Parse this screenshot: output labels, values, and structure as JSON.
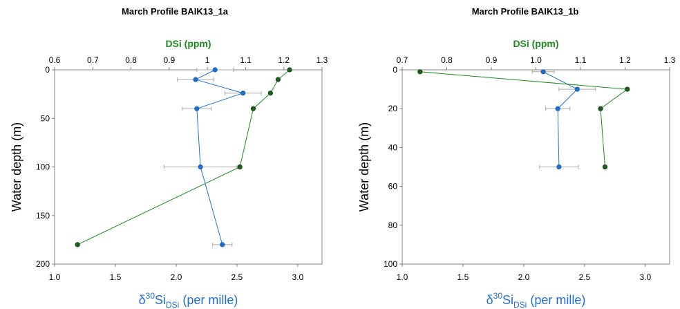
{
  "chart_data": [
    {
      "type": "scatter",
      "title": "March Profile BAIK13_1a",
      "top_axis_label": "DSi (ppm)",
      "ylabel": "Water depth (m)",
      "xlabel_parts": [
        "δ",
        "30",
        "Si",
        "DSi",
        " (per mille)"
      ],
      "x_bottom_lim": [
        1.0,
        3.2
      ],
      "x_bottom_ticks": [
        "1.0",
        "1.5",
        "2.0",
        "2.5",
        "3.0"
      ],
      "x_top_lim": [
        0.6,
        1.3
      ],
      "x_top_ticks": [
        "0.6",
        "0.7",
        "0.8",
        "0.9",
        "1",
        "1.1",
        "1.2",
        "1.3"
      ],
      "ylim": [
        0,
        200
      ],
      "y_ticks": [
        "0",
        "50",
        "100",
        "150",
        "200"
      ],
      "y_inverted": true,
      "grid": false,
      "series": [
        {
          "axis": "bottom",
          "color": "#1f6fd0",
          "points": [
            {
              "depth": 0,
              "value": 2.32,
              "err": 0.15
            },
            {
              "depth": 10,
              "value": 2.16,
              "err": 0.15
            },
            {
              "depth": 24,
              "value": 2.55,
              "err": 0.15
            },
            {
              "depth": 40,
              "value": 2.17,
              "err": 0.12
            },
            {
              "depth": 100,
              "value": 2.2,
              "err": 0.3
            },
            {
              "depth": 180,
              "value": 2.38,
              "err": 0.08
            }
          ]
        },
        {
          "axis": "top",
          "color": "#1f8a1f",
          "points": [
            {
              "depth": 0,
              "value": 1.215
            },
            {
              "depth": 10,
              "value": 1.185
            },
            {
              "depth": 24,
              "value": 1.165
            },
            {
              "depth": 40,
              "value": 1.12
            },
            {
              "depth": 100,
              "value": 1.085
            },
            {
              "depth": 180,
              "value": 0.66
            }
          ]
        }
      ]
    },
    {
      "type": "scatter",
      "title": "March Profile BAIK13_1b",
      "top_axis_label": "DSi (ppm)",
      "ylabel": "Water depth (m)",
      "xlabel_parts": [
        "δ",
        "30",
        "Si",
        "DSi",
        " (per mille)"
      ],
      "x_bottom_lim": [
        1.0,
        3.2
      ],
      "x_bottom_ticks": [
        "1.0",
        "1.5",
        "2.0",
        "2.5",
        "3.0"
      ],
      "x_top_lim": [
        0.7,
        1.3
      ],
      "x_top_ticks": [
        "0.7",
        "0.8",
        "0.9",
        "1.0",
        "1.1",
        "1.2",
        "1.3"
      ],
      "ylim": [
        0,
        100
      ],
      "y_ticks": [
        "0",
        "20",
        "40",
        "60",
        "80",
        "100"
      ],
      "y_inverted": true,
      "grid": false,
      "series": [
        {
          "axis": "bottom",
          "color": "#1f6fd0",
          "points": [
            {
              "depth": 1,
              "value": 2.16,
              "err": 0.09
            },
            {
              "depth": 10,
              "value": 2.44,
              "err": 0.15
            },
            {
              "depth": 20,
              "value": 2.28,
              "err": 0.1
            },
            {
              "depth": 50,
              "value": 2.29,
              "err": 0.16
            }
          ]
        },
        {
          "axis": "top",
          "color": "#1f8a1f",
          "points": [
            {
              "depth": 1,
              "value": 0.74
            },
            {
              "depth": 10,
              "value": 1.205
            },
            {
              "depth": 20,
              "value": 1.145
            },
            {
              "depth": 50,
              "value": 1.155
            }
          ]
        }
      ]
    }
  ]
}
